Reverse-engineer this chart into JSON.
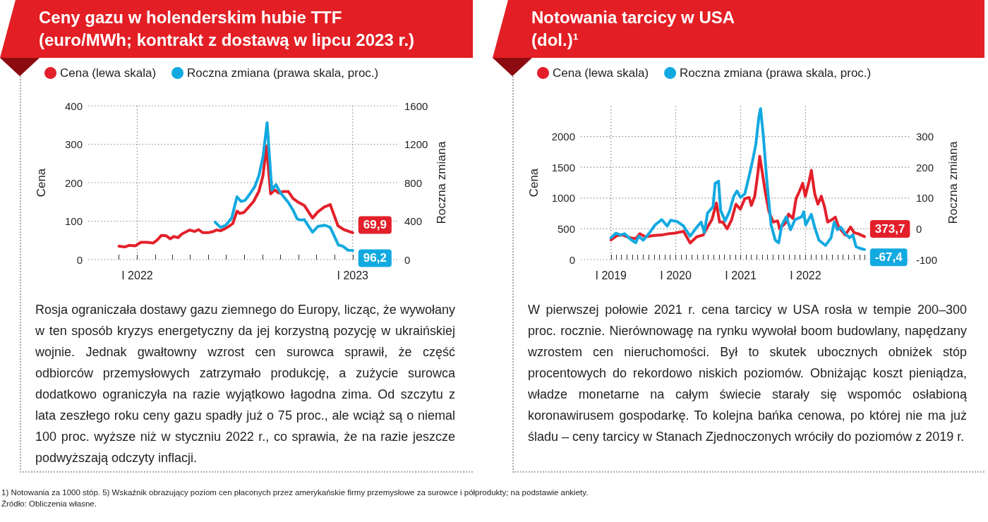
{
  "chart_data": [
    {
      "type": "line",
      "title": "Ceny gazu w holenderskim hubie TTF",
      "subtitle": "(euro/MWh; kontrakt z dostawą w lipcu 2023 r.)",
      "ylabel": "Cena",
      "y2label": "Roczna zmiana",
      "legend": "top left",
      "grid": true,
      "xlim": [
        "2021-10-10",
        "2023-03-20"
      ],
      "xticks": [
        {
          "value": "2021-12-01",
          "label": null
        },
        {
          "value": "2022-01-01",
          "label": "I 2022"
        },
        {
          "value": "2022-02-01",
          "label": null
        },
        {
          "value": "2022-03-01",
          "label": null
        },
        {
          "value": "2022-04-01",
          "label": null
        },
        {
          "value": "2022-05-01",
          "label": null
        },
        {
          "value": "2022-06-01",
          "label": null
        },
        {
          "value": "2022-07-01",
          "label": null
        },
        {
          "value": "2022-08-01",
          "label": null
        },
        {
          "value": "2022-09-01",
          "label": null
        },
        {
          "value": "2022-10-01",
          "label": null
        },
        {
          "value": "2022-11-01",
          "label": null
        },
        {
          "value": "2022-12-01",
          "label": null
        },
        {
          "value": "2023-01-01",
          "label": "I 2023"
        }
      ],
      "ylim": [
        0,
        400
      ],
      "yticks": [
        0,
        100,
        200,
        300,
        400
      ],
      "y2lim": [
        0,
        1600
      ],
      "y2ticks": [
        0,
        400,
        800,
        1200,
        1600
      ],
      "series": [
        {
          "name": "Cena (lewa skala)",
          "color": "#e3202a",
          "x": [
            "2021-12-01",
            "2021-12-11",
            "2021-12-18",
            "2021-12-29",
            "2022-01-07",
            "2022-01-18",
            "2022-01-28",
            "2022-02-04",
            "2022-02-11",
            "2022-02-19",
            "2022-02-26",
            "2022-03-04",
            "2022-03-11",
            "2022-03-18",
            "2022-03-31",
            "2022-04-08",
            "2022-04-15",
            "2022-04-22",
            "2022-05-01",
            "2022-05-10",
            "2022-05-15",
            "2022-05-22",
            "2022-05-29",
            "2022-06-07",
            "2022-06-12",
            "2022-06-19",
            "2022-06-24",
            "2022-07-01",
            "2022-07-08",
            "2022-07-17",
            "2022-07-26",
            "2022-08-02",
            "2022-08-08",
            "2022-08-15",
            "2022-08-22",
            "2022-08-29",
            "2022-09-05",
            "2022-09-14",
            "2022-09-22",
            "2022-10-01",
            "2022-10-11",
            "2022-10-25",
            "2022-11-03",
            "2022-11-14",
            "2022-11-24",
            "2022-12-07",
            "2022-12-17",
            "2023-01-01"
          ],
          "values": [
            35,
            33,
            37,
            36,
            45,
            45,
            43,
            51,
            63,
            62,
            54,
            60,
            57,
            67,
            77,
            73,
            78,
            70,
            70,
            73,
            77,
            75,
            80,
            88,
            94,
            126,
            120,
            123,
            135,
            151,
            177,
            218,
            295,
            171,
            181,
            173,
            177,
            177,
            159,
            149,
            141,
            108,
            124,
            137,
            143,
            88,
            78,
            69.9
          ],
          "value_labels": [
            null,
            null,
            null,
            null,
            null,
            null,
            null,
            null,
            null,
            null,
            null,
            null,
            null,
            null,
            null,
            null,
            null,
            null,
            null,
            null,
            null,
            null,
            null,
            null,
            null,
            null,
            null,
            null,
            null,
            null,
            null,
            null,
            null,
            null,
            null,
            null,
            null,
            null,
            null,
            null,
            null,
            null,
            null,
            null,
            null,
            null,
            null,
            "69,9"
          ]
        },
        {
          "name": "Roczna zmiana (prawa skala, proc.)",
          "color": "#12a9e0",
          "axis": "y2",
          "x": [
            "2022-05-13",
            "2022-05-22",
            "2022-05-31",
            "2022-06-10",
            "2022-06-19",
            "2022-06-26",
            "2022-07-03",
            "2022-07-10",
            "2022-07-19",
            "2022-07-26",
            "2022-08-02",
            "2022-08-09",
            "2022-08-17",
            "2022-08-24",
            "2022-09-01",
            "2022-09-14",
            "2022-09-22",
            "2022-09-29",
            "2022-10-06",
            "2022-10-11",
            "2022-10-25",
            "2022-11-03",
            "2022-11-15",
            "2022-11-24",
            "2022-12-08",
            "2022-12-15",
            "2022-12-24",
            "2023-01-01"
          ],
          "values": [
            390,
            335,
            358,
            432,
            653,
            605,
            618,
            676,
            757,
            871,
            1066,
            1424,
            725,
            780,
            692,
            595,
            514,
            423,
            410,
            416,
            286,
            345,
            358,
            335,
            150,
            140,
            98,
            96.2
          ],
          "value_labels": [
            null,
            null,
            null,
            null,
            null,
            null,
            null,
            null,
            null,
            null,
            null,
            null,
            null,
            null,
            null,
            null,
            null,
            null,
            null,
            null,
            null,
            null,
            null,
            null,
            null,
            null,
            null,
            "96,2"
          ]
        }
      ],
      "annotations": [
        "Rosja ograniczała dostawy gazu ziemnego do Europy, licząc, że wywołany w ten sposób kryzys energetyczny da jej korzystną pozycję w ukraińskiej wojnie. Jednak gwałtowny wzrost cen surowca sprawił, że część odbiorców przemysłowych zatrzymało produkcję, a zużycie surowca dodatkowo ograniczyła na razie wyjątkowo łagodna zima. Od szczytu z lata zeszłego roku ceny gazu spadły już o 75 proc., ale wciąż są o niemal 100 proc. wyższe niż w styczniu 2022 r., co sprawia, że na razie jeszcze podwyższają odczyty inflacji."
      ]
    },
    {
      "type": "line",
      "title": "Notowania tarcicy w USA",
      "subtitle": "(dol.)¹",
      "ylabel": "Cena",
      "y2label": "Roczna zmiana",
      "legend": "top left",
      "grid": true,
      "xlim": [
        "2018-07-15",
        "2023-08-15"
      ],
      "xticks": [
        {
          "value": "2019-01-01",
          "label": "I 2019"
        },
        {
          "value": "2019-02-01",
          "label": null
        },
        {
          "value": "2019-03-01",
          "label": null
        },
        {
          "value": "2019-04-01",
          "label": null
        },
        {
          "value": "2019-05-01",
          "label": null
        },
        {
          "value": "2019-06-01",
          "label": null
        },
        {
          "value": "2019-07-01",
          "label": null
        },
        {
          "value": "2019-08-01",
          "label": null
        },
        {
          "value": "2019-09-01",
          "label": null
        },
        {
          "value": "2019-10-01",
          "label": null
        },
        {
          "value": "2019-11-01",
          "label": null
        },
        {
          "value": "2019-12-01",
          "label": null
        },
        {
          "value": "2020-01-01",
          "label": "I 2020"
        },
        {
          "value": "2020-02-01",
          "label": null
        },
        {
          "value": "2020-03-01",
          "label": null
        },
        {
          "value": "2020-04-01",
          "label": null
        },
        {
          "value": "2020-05-01",
          "label": null
        },
        {
          "value": "2020-06-01",
          "label": null
        },
        {
          "value": "2020-07-01",
          "label": null
        },
        {
          "value": "2020-08-01",
          "label": null
        },
        {
          "value": "2020-09-01",
          "label": null
        },
        {
          "value": "2020-10-01",
          "label": null
        },
        {
          "value": "2020-11-01",
          "label": null
        },
        {
          "value": "2020-12-01",
          "label": null
        },
        {
          "value": "2021-01-01",
          "label": "I 2021"
        },
        {
          "value": "2021-02-01",
          "label": null
        },
        {
          "value": "2021-03-01",
          "label": null
        },
        {
          "value": "2021-04-01",
          "label": null
        },
        {
          "value": "2021-05-01",
          "label": null
        },
        {
          "value": "2021-06-01",
          "label": null
        },
        {
          "value": "2021-07-01",
          "label": null
        },
        {
          "value": "2021-08-01",
          "label": null
        },
        {
          "value": "2021-09-01",
          "label": null
        },
        {
          "value": "2021-10-01",
          "label": null
        },
        {
          "value": "2021-11-01",
          "label": null
        },
        {
          "value": "2021-12-01",
          "label": null
        },
        {
          "value": "2022-01-01",
          "label": "I 2022"
        },
        {
          "value": "2022-02-01",
          "label": null
        },
        {
          "value": "2022-03-01",
          "label": null
        },
        {
          "value": "2022-04-01",
          "label": null
        },
        {
          "value": "2022-05-01",
          "label": null
        },
        {
          "value": "2022-06-01",
          "label": null
        },
        {
          "value": "2022-07-01",
          "label": null
        },
        {
          "value": "2022-08-01",
          "label": null
        },
        {
          "value": "2022-09-01",
          "label": null
        },
        {
          "value": "2022-10-01",
          "label": null
        },
        {
          "value": "2022-11-01",
          "label": null
        },
        {
          "value": "2022-12-01",
          "label": null
        }
      ],
      "ylim": [
        0,
        2500
      ],
      "yticks": [
        0,
        500,
        1000,
        1500,
        2000
      ],
      "y2lim": [
        -100,
        400
      ],
      "y2ticks": [
        -100,
        0,
        100,
        200,
        300
      ],
      "series": [
        {
          "name": "Cena (lewa skala)",
          "color": "#e3202a",
          "x": [
            "2019-01-01",
            "2019-02-04",
            "2019-03-07",
            "2019-04-13",
            "2019-05-20",
            "2019-06-13",
            "2019-07-14",
            "2019-08-26",
            "2019-10-14",
            "2019-11-20",
            "2019-12-27",
            "2020-02-14",
            "2020-03-22",
            "2020-04-28",
            "2020-06-04",
            "2020-06-28",
            "2020-07-23",
            "2020-08-17",
            "2020-09-04",
            "2020-09-22",
            "2020-10-17",
            "2020-11-11",
            "2020-12-05",
            "2020-12-30",
            "2021-01-24",
            "2021-02-18",
            "2021-03-02",
            "2021-03-21",
            "2021-04-08",
            "2021-04-18",
            "2021-05-03",
            "2021-05-21",
            "2021-06-09",
            "2021-07-03",
            "2021-07-28",
            "2021-08-09",
            "2021-09-15",
            "2021-09-27",
            "2021-10-22",
            "2021-11-09",
            "2021-11-28",
            "2021-12-16",
            "2021-12-31",
            "2022-01-22",
            "2022-02-03",
            "2022-02-22",
            "2022-03-12",
            "2022-03-31",
            "2022-04-18",
            "2022-05-06",
            "2022-05-31",
            "2022-06-18",
            "2022-07-07",
            "2022-08-13",
            "2022-09-12",
            "2022-10-01",
            "2022-10-25",
            "2022-11-29"
          ],
          "values": [
            320,
            390,
            400,
            360,
            340,
            420,
            370,
            390,
            400,
            420,
            430,
            460,
            270,
            370,
            400,
            530,
            650,
            920,
            610,
            610,
            500,
            650,
            900,
            820,
            990,
            1010,
            880,
            1030,
            1410,
            1680,
            1410,
            1070,
            780,
            610,
            630,
            500,
            610,
            740,
            670,
            990,
            1110,
            1240,
            1030,
            1280,
            1450,
            1070,
            900,
            1030,
            860,
            610,
            650,
            690,
            530,
            400,
            530,
            440,
            420,
            373.7
          ],
          "value_labels": [
            null,
            null,
            null,
            null,
            null,
            null,
            null,
            null,
            null,
            null,
            null,
            null,
            null,
            null,
            null,
            null,
            null,
            null,
            null,
            null,
            null,
            null,
            null,
            null,
            null,
            null,
            null,
            null,
            null,
            null,
            null,
            null,
            null,
            null,
            null,
            null,
            null,
            null,
            null,
            null,
            null,
            null,
            null,
            null,
            null,
            null,
            null,
            null,
            null,
            null,
            null,
            null,
            null,
            null,
            null,
            null,
            null,
            "373,7"
          ]
        },
        {
          "name": "Roczna zmiana (prawa skala, proc.)",
          "color": "#12a9e0",
          "axis": "y2",
          "x": [
            "2019-01-01",
            "2019-01-29",
            "2019-02-23",
            "2019-03-19",
            "2019-04-19",
            "2019-05-20",
            "2019-06-07",
            "2019-07-02",
            "2019-08-02",
            "2019-09-07",
            "2019-10-14",
            "2019-11-14",
            "2019-12-03",
            "2020-01-08",
            "2020-02-14",
            "2020-03-22",
            "2020-04-28",
            "2020-05-23",
            "2020-06-10",
            "2020-06-28",
            "2020-07-29",
            "2020-08-10",
            "2020-08-29",
            "2020-09-10",
            "2020-10-05",
            "2020-10-29",
            "2020-11-23",
            "2020-12-11",
            "2020-12-30",
            "2021-01-24",
            "2021-02-18",
            "2021-03-08",
            "2021-03-27",
            "2021-04-14",
            "2021-04-23",
            "2021-05-09",
            "2021-05-27",
            "2021-06-21",
            "2021-07-15",
            "2021-08-03",
            "2021-08-21",
            "2021-09-15",
            "2021-10-09",
            "2021-11-03",
            "2021-12-10",
            "2021-12-22",
            "2022-01-02",
            "2022-02-03",
            "2022-02-22",
            "2022-03-18",
            "2022-04-24",
            "2022-05-25",
            "2022-06-12",
            "2022-07-01",
            "2022-07-19",
            "2022-08-13",
            "2022-09-06",
            "2022-09-25",
            "2022-10-13",
            "2022-11-07",
            "2022-11-29"
          ],
          "values": [
            -29,
            -14,
            -20,
            -16,
            -33,
            -45,
            -24,
            -37,
            -16,
            13,
            30,
            9,
            28,
            24,
            9,
            -24,
            5,
            22,
            -12,
            51,
            72,
            148,
            155,
            60,
            26,
            55,
            106,
            123,
            102,
            114,
            173,
            219,
            274,
            366,
            391,
            299,
            165,
            13,
            -37,
            -45,
            13,
            39,
            -3,
            30,
            39,
            55,
            13,
            47,
            5,
            -37,
            -54,
            -29,
            22,
            -3,
            5,
            -16,
            -29,
            -20,
            -58,
            -64,
            -67.4
          ],
          "value_labels": [
            null,
            null,
            null,
            null,
            null,
            null,
            null,
            null,
            null,
            null,
            null,
            null,
            null,
            null,
            null,
            null,
            null,
            null,
            null,
            null,
            null,
            null,
            null,
            null,
            null,
            null,
            null,
            null,
            null,
            null,
            null,
            null,
            null,
            null,
            null,
            null,
            null,
            null,
            null,
            null,
            null,
            null,
            null,
            null,
            null,
            null,
            null,
            null,
            null,
            null,
            null,
            null,
            null,
            null,
            null,
            null,
            null,
            null,
            null,
            null,
            "-67,4"
          ]
        }
      ],
      "annotations": [
        "W pierwszej połowie 2021 r. cena tarcicy w USA rosła w tempie 200–300 proc. rocznie. Nierównowagę na rynku wywołał boom budowlany, napędzany wzrostem cen nieruchomości. Był to skutek ubocznych obniżek stóp procentowych do rekordowo niskich poziomów. Obniżając koszt pieniądza, władze monetarne na całym świecie starały się wspomóc osłabioną koronawirusem gospodarkę. To kolejna bańka cenowa, po której nie ma już śladu – ceny tarcicy w Stanach Zjednoczonych wróciły do poziomów z 2019 r.",
        "1) Notowania za 1000 stóp. 5) Wskaźnik obrazujący poziom cen płaconych przez amerykańskie firmy przemysłowe za surowce i półprodukty; na podstawie ankiety.",
        "Źródło: Obliczenia własne."
      ]
    }
  ]
}
